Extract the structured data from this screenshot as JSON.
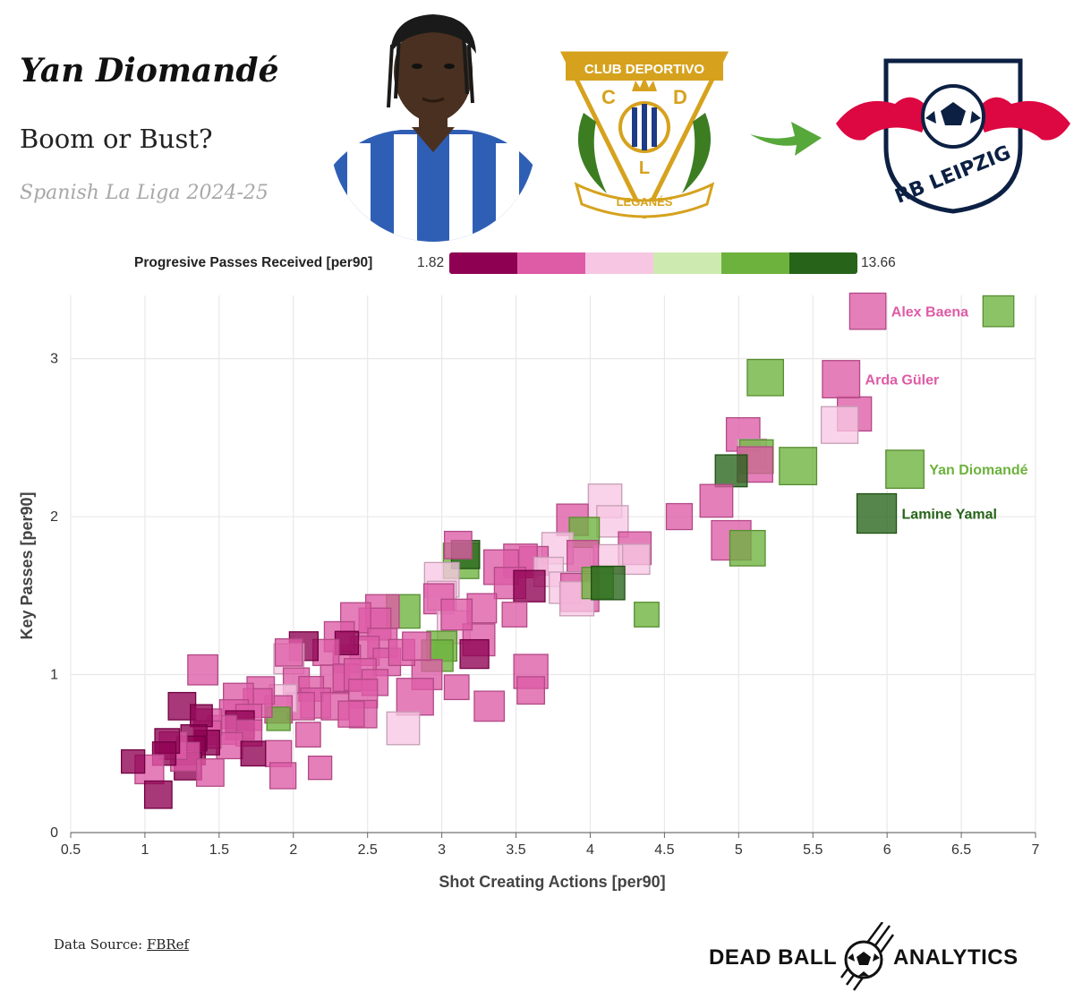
{
  "header": {
    "title": "Yan Diomandé",
    "subtitle": "Boom or Bust?",
    "league": "Spanish La Liga 2024-25"
  },
  "crest": {
    "top_text": "CLUB DEPORTIVO",
    "bottom_text": "LEGANÉS",
    "left_letter": "C",
    "right_letter": "D",
    "bottom_letter": "L"
  },
  "leipzig": {
    "text": "RB LEIPZIG"
  },
  "legend": {
    "label": "Progresive Passes Received [per90]",
    "min": "1.82",
    "max": "13.66",
    "colors": [
      "#8e0152",
      "#de5ba6",
      "#f7c6e3",
      "#cdebb0",
      "#6db23c",
      "#276419"
    ]
  },
  "chart_data": {
    "type": "scatter",
    "xlabel": "Shot Creating Actions [per90]",
    "ylabel": "Key Passes [per90]",
    "xlim": [
      0.5,
      7
    ],
    "ylim": [
      0,
      3.4
    ],
    "xticks": [
      "0.5",
      "1",
      "1.5",
      "2",
      "2.5",
      "3",
      "3.5",
      "4",
      "4.5",
      "5",
      "5.5",
      "6",
      "6.5",
      "7"
    ],
    "yticks": [
      "0",
      "1",
      "2",
      "3"
    ],
    "grid": true,
    "marker": "square",
    "color_scale": {
      "variable": "Progresive Passes Received [per90]",
      "min": 1.82,
      "max": 13.66
    },
    "labeled_points": [
      {
        "name": "Alex Baena",
        "x": 5.87,
        "y": 3.3,
        "c": 4.5,
        "s": 0.88
      },
      {
        "name": "Arda Güler",
        "x": 5.69,
        "y": 2.87,
        "c": 5.5,
        "s": 0.92
      },
      {
        "name": "Yan Diomandé",
        "x": 6.12,
        "y": 2.3,
        "c": 10.0,
        "s": 0.95
      },
      {
        "name": "Lamine Yamal",
        "x": 5.93,
        "y": 2.02,
        "c": 13.5,
        "s": 1.0
      }
    ],
    "points": [
      {
        "x": 6.75,
        "y": 3.3,
        "c": 10.5,
        "s": 0.68
      },
      {
        "x": 5.18,
        "y": 2.88,
        "c": 10.5,
        "s": 0.88
      },
      {
        "x": 5.78,
        "y": 2.65,
        "c": 4.5,
        "s": 0.8
      },
      {
        "x": 5.68,
        "y": 2.58,
        "c": 7.5,
        "s": 0.9
      },
      {
        "x": 5.03,
        "y": 2.52,
        "c": 5.5,
        "s": 0.78
      },
      {
        "x": 5.09,
        "y": 2.4,
        "c": 7.5,
        "s": 0.6
      },
      {
        "x": 5.12,
        "y": 2.38,
        "c": 10.5,
        "s": 0.78
      },
      {
        "x": 5.4,
        "y": 2.32,
        "c": 10.5,
        "s": 0.92
      },
      {
        "x": 5.11,
        "y": 2.33,
        "c": 4.5,
        "s": 0.85
      },
      {
        "x": 4.95,
        "y": 2.29,
        "c": 13.5,
        "s": 0.72
      },
      {
        "x": 4.85,
        "y": 2.1,
        "c": 5.5,
        "s": 0.75
      },
      {
        "x": 4.6,
        "y": 2.0,
        "c": 4.5,
        "s": 0.5
      },
      {
        "x": 4.95,
        "y": 1.85,
        "c": 5.5,
        "s": 1.0
      },
      {
        "x": 5.06,
        "y": 1.8,
        "c": 10.5,
        "s": 0.85
      },
      {
        "x": 4.1,
        "y": 2.1,
        "c": 7.5,
        "s": 0.78
      },
      {
        "x": 4.15,
        "y": 1.97,
        "c": 7.5,
        "s": 0.7
      },
      {
        "x": 3.88,
        "y": 1.98,
        "c": 5.5,
        "s": 0.7
      },
      {
        "x": 3.96,
        "y": 1.9,
        "c": 10.5,
        "s": 0.65
      },
      {
        "x": 3.78,
        "y": 1.8,
        "c": 7.5,
        "s": 0.7
      },
      {
        "x": 4.3,
        "y": 1.8,
        "c": 4.5,
        "s": 0.75
      },
      {
        "x": 4.3,
        "y": 1.73,
        "c": 7.5,
        "s": 0.65
      },
      {
        "x": 4.12,
        "y": 1.73,
        "c": 7.5,
        "s": 0.62
      },
      {
        "x": 3.95,
        "y": 1.75,
        "c": 5.5,
        "s": 0.7
      },
      {
        "x": 3.62,
        "y": 1.72,
        "c": 5.5,
        "s": 0.6
      },
      {
        "x": 3.53,
        "y": 1.72,
        "c": 5.5,
        "s": 0.78
      },
      {
        "x": 3.4,
        "y": 1.68,
        "c": 5.5,
        "s": 0.82
      },
      {
        "x": 3.72,
        "y": 1.65,
        "c": 7.5,
        "s": 0.62
      },
      {
        "x": 3.83,
        "y": 1.55,
        "c": 7.5,
        "s": 0.7
      },
      {
        "x": 3.93,
        "y": 1.52,
        "c": 5.5,
        "s": 0.95
      },
      {
        "x": 3.91,
        "y": 1.48,
        "c": 7.5,
        "s": 0.8
      },
      {
        "x": 4.05,
        "y": 1.58,
        "c": 10.5,
        "s": 0.7
      },
      {
        "x": 4.12,
        "y": 1.58,
        "c": 13.5,
        "s": 0.78
      },
      {
        "x": 3.46,
        "y": 1.58,
        "c": 5.5,
        "s": 0.7
      },
      {
        "x": 3.59,
        "y": 1.56,
        "c": 1.82,
        "s": 0.7
      },
      {
        "x": 4.38,
        "y": 1.38,
        "c": 10.5,
        "s": 0.45
      },
      {
        "x": 3.13,
        "y": 1.72,
        "c": 10.5,
        "s": 0.85
      },
      {
        "x": 3.16,
        "y": 1.76,
        "c": 13.5,
        "s": 0.58
      },
      {
        "x": 3.11,
        "y": 1.82,
        "c": 5.5,
        "s": 0.55
      },
      {
        "x": 3.0,
        "y": 1.6,
        "c": 7.5,
        "s": 0.82
      },
      {
        "x": 3.0,
        "y": 1.5,
        "c": 7.5,
        "s": 0.6
      },
      {
        "x": 2.98,
        "y": 1.48,
        "c": 4.5,
        "s": 0.65
      },
      {
        "x": 3.08,
        "y": 1.3,
        "c": 7.5,
        "s": 0.75
      },
      {
        "x": 3.27,
        "y": 1.42,
        "c": 4.5,
        "s": 0.62
      },
      {
        "x": 3.25,
        "y": 1.22,
        "c": 4.5,
        "s": 0.72
      },
      {
        "x": 3.22,
        "y": 1.13,
        "c": 1.82,
        "s": 0.6
      },
      {
        "x": 3.1,
        "y": 1.38,
        "c": 5.5,
        "s": 0.68
      },
      {
        "x": 3.49,
        "y": 1.38,
        "c": 5.5,
        "s": 0.45
      },
      {
        "x": 3.6,
        "y": 1.02,
        "c": 5.5,
        "s": 0.8
      },
      {
        "x": 3.6,
        "y": 0.9,
        "c": 4.5,
        "s": 0.55
      },
      {
        "x": 3.0,
        "y": 1.18,
        "c": 10.5,
        "s": 0.65
      },
      {
        "x": 2.97,
        "y": 1.12,
        "c": 10.5,
        "s": 0.7
      },
      {
        "x": 2.9,
        "y": 1.0,
        "c": 4.5,
        "s": 0.65
      },
      {
        "x": 2.82,
        "y": 0.86,
        "c": 4.5,
        "s": 0.9
      },
      {
        "x": 3.32,
        "y": 0.8,
        "c": 5.5,
        "s": 0.65
      },
      {
        "x": 3.1,
        "y": 0.92,
        "c": 5.5,
        "s": 0.45
      },
      {
        "x": 2.74,
        "y": 0.66,
        "c": 7.5,
        "s": 0.75
      },
      {
        "x": 2.74,
        "y": 1.4,
        "c": 10.5,
        "s": 0.78
      },
      {
        "x": 2.6,
        "y": 1.4,
        "c": 4.5,
        "s": 0.78
      },
      {
        "x": 2.55,
        "y": 1.32,
        "c": 4.5,
        "s": 0.72
      },
      {
        "x": 2.42,
        "y": 1.36,
        "c": 4.5,
        "s": 0.65
      },
      {
        "x": 2.6,
        "y": 1.2,
        "c": 4.5,
        "s": 0.62
      },
      {
        "x": 2.48,
        "y": 1.15,
        "c": 5.5,
        "s": 0.62
      },
      {
        "x": 2.63,
        "y": 1.08,
        "c": 5.5,
        "s": 0.55
      },
      {
        "x": 2.73,
        "y": 1.14,
        "c": 5.5,
        "s": 0.5
      },
      {
        "x": 2.83,
        "y": 1.18,
        "c": 5.5,
        "s": 0.58
      },
      {
        "x": 2.36,
        "y": 1.1,
        "c": 4.5,
        "s": 0.55
      },
      {
        "x": 2.31,
        "y": 1.24,
        "c": 5.5,
        "s": 0.65
      },
      {
        "x": 2.36,
        "y": 1.2,
        "c": 1.82,
        "s": 0.4
      },
      {
        "x": 2.22,
        "y": 1.14,
        "c": 4.5,
        "s": 0.5
      },
      {
        "x": 2.07,
        "y": 1.18,
        "c": 1.82,
        "s": 0.6
      },
      {
        "x": 1.97,
        "y": 1.1,
        "c": 7.5,
        "s": 0.65
      },
      {
        "x": 1.97,
        "y": 1.14,
        "c": 4.5,
        "s": 0.55
      },
      {
        "x": 2.28,
        "y": 0.97,
        "c": 5.5,
        "s": 0.6
      },
      {
        "x": 2.36,
        "y": 0.98,
        "c": 5.5,
        "s": 0.55
      },
      {
        "x": 2.45,
        "y": 1.0,
        "c": 4.5,
        "s": 0.72
      },
      {
        "x": 2.55,
        "y": 0.95,
        "c": 4.5,
        "s": 0.5
      },
      {
        "x": 2.47,
        "y": 0.88,
        "c": 4.5,
        "s": 0.6
      },
      {
        "x": 2.47,
        "y": 0.75,
        "c": 5.5,
        "s": 0.55
      },
      {
        "x": 2.02,
        "y": 0.96,
        "c": 4.5,
        "s": 0.5
      },
      {
        "x": 2.12,
        "y": 0.91,
        "c": 5.5,
        "s": 0.45
      },
      {
        "x": 2.15,
        "y": 0.82,
        "c": 4.5,
        "s": 0.65
      },
      {
        "x": 2.05,
        "y": 0.8,
        "c": 4.5,
        "s": 0.55
      },
      {
        "x": 2.1,
        "y": 0.62,
        "c": 4.5,
        "s": 0.45
      },
      {
        "x": 2.28,
        "y": 0.8,
        "c": 4.5,
        "s": 0.55
      },
      {
        "x": 2.39,
        "y": 0.75,
        "c": 5.5,
        "s": 0.5
      },
      {
        "x": 1.93,
        "y": 0.85,
        "c": 7.5,
        "s": 0.55
      },
      {
        "x": 1.9,
        "y": 0.78,
        "c": 5.5,
        "s": 0.55
      },
      {
        "x": 1.9,
        "y": 0.72,
        "c": 10.5,
        "s": 0.4
      },
      {
        "x": 1.78,
        "y": 0.9,
        "c": 4.5,
        "s": 0.55
      },
      {
        "x": 1.76,
        "y": 0.82,
        "c": 4.5,
        "s": 0.6
      },
      {
        "x": 1.63,
        "y": 0.85,
        "c": 4.5,
        "s": 0.65
      },
      {
        "x": 1.6,
        "y": 0.75,
        "c": 5.5,
        "s": 0.6
      },
      {
        "x": 1.7,
        "y": 0.73,
        "c": 4.5,
        "s": 0.5
      },
      {
        "x": 1.64,
        "y": 0.68,
        "c": 1.82,
        "s": 0.6
      },
      {
        "x": 1.7,
        "y": 0.63,
        "c": 4.5,
        "s": 0.5
      },
      {
        "x": 1.52,
        "y": 0.65,
        "c": 4.5,
        "s": 0.6
      },
      {
        "x": 1.57,
        "y": 0.55,
        "c": 5.5,
        "s": 0.5
      },
      {
        "x": 1.9,
        "y": 0.5,
        "c": 5.5,
        "s": 0.5
      },
      {
        "x": 1.93,
        "y": 0.36,
        "c": 5.5,
        "s": 0.5
      },
      {
        "x": 2.18,
        "y": 0.41,
        "c": 5.5,
        "s": 0.4
      },
      {
        "x": 1.73,
        "y": 0.5,
        "c": 1.82,
        "s": 0.45
      },
      {
        "x": 1.39,
        "y": 1.03,
        "c": 4.5,
        "s": 0.65
      },
      {
        "x": 1.25,
        "y": 0.8,
        "c": 1.82,
        "s": 0.55
      },
      {
        "x": 1.43,
        "y": 0.7,
        "c": 4.5,
        "s": 0.5
      },
      {
        "x": 1.42,
        "y": 0.62,
        "c": 4.5,
        "s": 0.55
      },
      {
        "x": 1.42,
        "y": 0.57,
        "c": 1.82,
        "s": 0.45
      },
      {
        "x": 1.38,
        "y": 0.74,
        "c": 1.82,
        "s": 0.35
      },
      {
        "x": 1.33,
        "y": 0.6,
        "c": 1.82,
        "s": 0.5
      },
      {
        "x": 1.31,
        "y": 0.52,
        "c": 1.82,
        "s": 0.6
      },
      {
        "x": 1.29,
        "y": 0.42,
        "c": 1.82,
        "s": 0.55
      },
      {
        "x": 1.27,
        "y": 0.48,
        "c": 4.5,
        "s": 0.6
      },
      {
        "x": 1.19,
        "y": 0.55,
        "c": 4.5,
        "s": 0.55
      },
      {
        "x": 1.15,
        "y": 0.58,
        "c": 1.82,
        "s": 0.45
      },
      {
        "x": 1.13,
        "y": 0.5,
        "c": 1.82,
        "s": 0.4
      },
      {
        "x": 1.44,
        "y": 0.38,
        "c": 4.5,
        "s": 0.55
      },
      {
        "x": 1.03,
        "y": 0.4,
        "c": 4.5,
        "s": 0.6
      },
      {
        "x": 0.92,
        "y": 0.45,
        "c": 1.82,
        "s": 0.4
      },
      {
        "x": 1.09,
        "y": 0.24,
        "c": 1.82,
        "s": 0.55
      }
    ]
  },
  "footer": {
    "source_label": "Data Source: ",
    "source_name": "FBRef",
    "brand_left": "DEAD BALL",
    "brand_right": "ANALYTICS"
  }
}
